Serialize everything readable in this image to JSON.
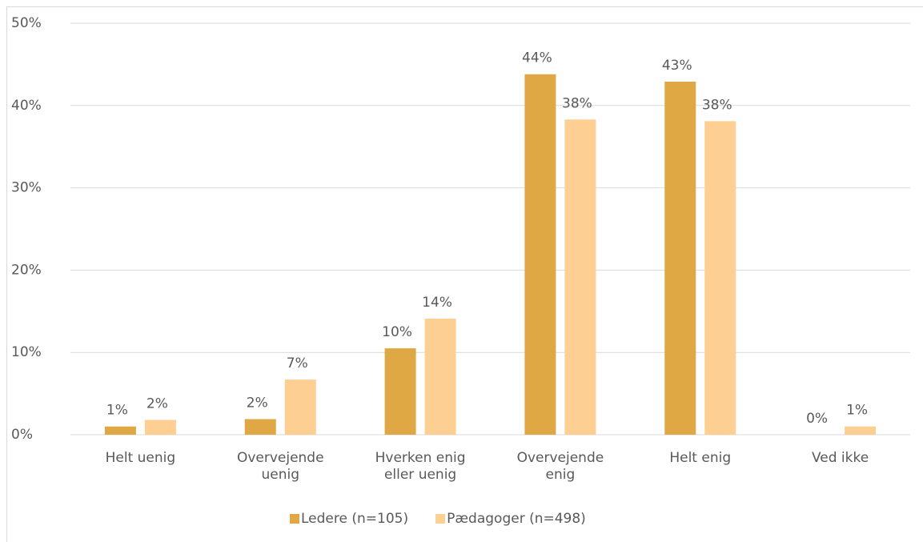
{
  "chart_data": {
    "type": "bar",
    "categories": [
      "Helt uenig",
      "Overvejende uenig",
      "Hverken enig eller uenig",
      "Overvejende enig",
      "Helt enig",
      "Ved ikke"
    ],
    "series": [
      {
        "name": "Ledere (n=105)",
        "color": "#dfa845",
        "values": [
          1.0,
          1.9,
          10.5,
          43.8,
          42.9,
          0
        ],
        "value_labels": [
          "1%",
          "2%",
          "10%",
          "44%",
          "43%",
          "0%"
        ]
      },
      {
        "name": "Pædagoger (n=498)",
        "color": "#fdcf92",
        "values": [
          1.8,
          6.7,
          14.1,
          38.3,
          38.1,
          1.0
        ],
        "value_labels": [
          "2%",
          "7%",
          "14%",
          "38%",
          "38%",
          "1%"
        ]
      }
    ],
    "ylim": [
      0,
      50
    ],
    "yticks": [
      {
        "value": 0,
        "label": "0%"
      },
      {
        "value": 10,
        "label": "10%"
      },
      {
        "value": 20,
        "label": "20%"
      },
      {
        "value": 30,
        "label": "30%"
      },
      {
        "value": 40,
        "label": "40%"
      },
      {
        "value": 50,
        "label": "50%"
      }
    ],
    "grid": true,
    "legend": "bottom"
  }
}
